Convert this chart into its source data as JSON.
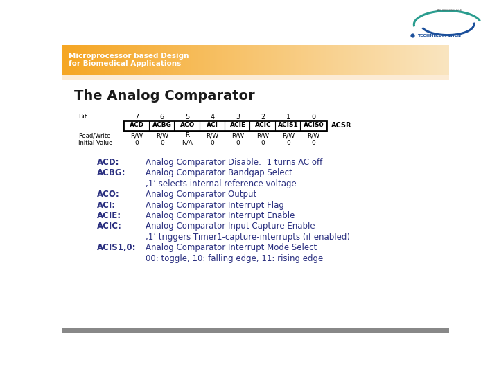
{
  "title": "The Analog Comparator",
  "header_text1": "Microprocessor based Design",
  "header_text2": "for Biomedical Applications",
  "slide_bg": "#FFFFFF",
  "text_color": "#2B3080",
  "table_bits": [
    "7",
    "6",
    "5",
    "4",
    "3",
    "2",
    "1",
    "0"
  ],
  "table_regs": [
    "ACD",
    "ACBG",
    "ACO",
    "ACI",
    "ACIE",
    "ACIC",
    "ACIS1",
    "ACIS0"
  ],
  "table_rw": [
    "R/W",
    "R/W",
    "R",
    "R/W",
    "R/W",
    "R/W",
    "R/W",
    "R/W"
  ],
  "table_init": [
    "0",
    "0",
    "N/A",
    "0",
    "0",
    "0",
    "0",
    "0"
  ],
  "reg_name": "ACSR",
  "description_lines": [
    [
      "ACD:",
      "Analog Comparator Disable:  1 turns AC off"
    ],
    [
      "ACBG:",
      "Analog Comparator Bandgap Select"
    ],
    [
      "",
      ",1’ selects internal reference voltage"
    ],
    [
      "ACO:",
      "Analog Comparator Output"
    ],
    [
      "ACI:",
      "Analog Comparator Interrupt Flag"
    ],
    [
      "ACIE:",
      "Analog Comparator Interrupt Enable"
    ],
    [
      "ACIC:",
      "Analog Comparator Input Capture Enable"
    ],
    [
      "",
      ",1’ triggers Timer1-capture-interrupts (if enabled)"
    ],
    [
      "ACIS1,0:",
      "Analog Comparator Interrupt Mode Select"
    ],
    [
      "",
      "00: toggle, 10: falling edge, 11: rising edge"
    ]
  ]
}
